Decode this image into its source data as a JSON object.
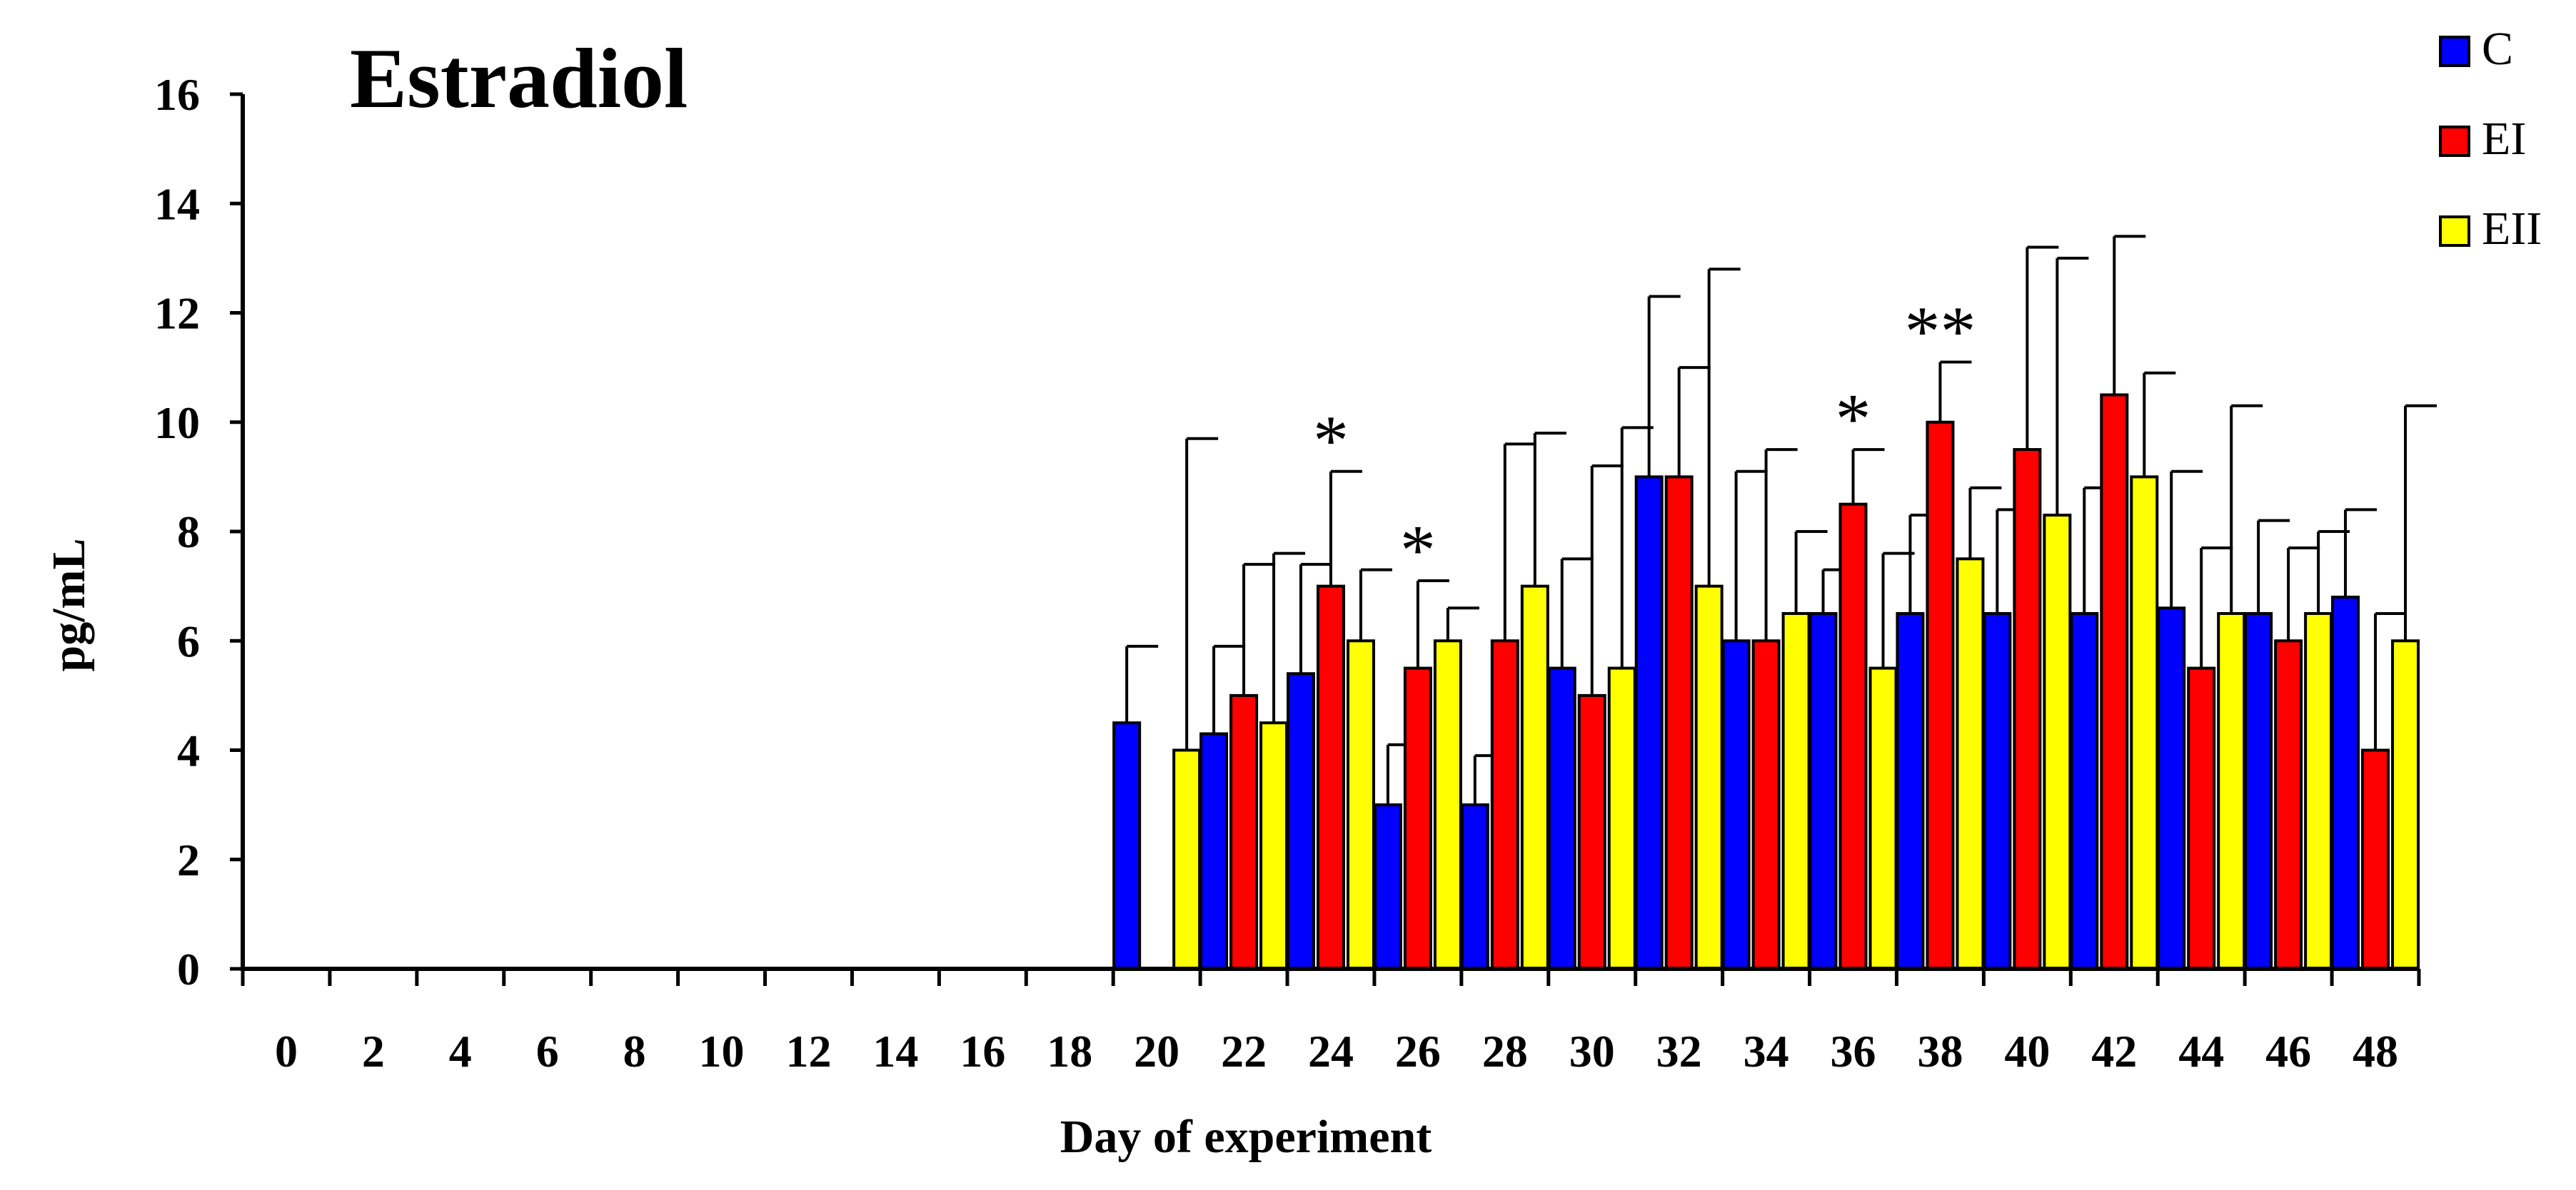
{
  "chart_data": {
    "type": "bar",
    "title": "Estradiol",
    "xlabel": "Day of experiment",
    "ylabel": "pg/mL",
    "ylim": [
      0,
      16
    ],
    "yticks": [
      "0",
      "2",
      "4",
      "6",
      "8",
      "10",
      "12",
      "14",
      "16"
    ],
    "categories": [
      "0",
      "2",
      "4",
      "6",
      "8",
      "10",
      "12",
      "14",
      "16",
      "18",
      "20",
      "22",
      "24",
      "26",
      "28",
      "30",
      "32",
      "34",
      "36",
      "38",
      "40",
      "42",
      "44",
      "46",
      "48"
    ],
    "series": [
      {
        "name": "C",
        "color": "#0000ff",
        "values": [
          null,
          null,
          null,
          null,
          null,
          null,
          null,
          null,
          null,
          null,
          4.5,
          4.3,
          5.4,
          3.0,
          3.0,
          5.5,
          9.0,
          6.0,
          6.5,
          6.5,
          6.5,
          6.5,
          6.6,
          6.5,
          6.8
        ],
        "errors": [
          null,
          null,
          null,
          null,
          null,
          null,
          null,
          null,
          null,
          null,
          1.4,
          1.6,
          2.0,
          1.1,
          0.9,
          2.0,
          3.3,
          3.1,
          0.8,
          1.8,
          1.9,
          2.3,
          2.5,
          1.7,
          1.6
        ]
      },
      {
        "name": "EI",
        "color": "#ff0000",
        "values": [
          null,
          null,
          null,
          null,
          null,
          null,
          null,
          null,
          null,
          null,
          null,
          5.0,
          7.0,
          5.5,
          6.0,
          5.0,
          9.0,
          6.0,
          8.5,
          10.0,
          9.5,
          10.5,
          5.5,
          6.0,
          4.0
        ],
        "errors": [
          null,
          null,
          null,
          null,
          null,
          null,
          null,
          null,
          null,
          null,
          null,
          2.4,
          2.1,
          1.6,
          3.6,
          4.2,
          2.0,
          3.5,
          1.0,
          1.1,
          3.7,
          2.9,
          2.2,
          1.7,
          2.5
        ]
      },
      {
        "name": "EII",
        "color": "#ffff00",
        "values": [
          null,
          null,
          null,
          null,
          null,
          null,
          null,
          null,
          null,
          null,
          4.0,
          4.5,
          6.0,
          6.0,
          7.0,
          5.5,
          7.0,
          6.5,
          5.5,
          7.5,
          8.3,
          9.0,
          6.5,
          6.5,
          6.0
        ],
        "errors": [
          null,
          null,
          null,
          null,
          null,
          null,
          null,
          null,
          null,
          null,
          5.7,
          3.1,
          1.3,
          0.6,
          2.8,
          4.4,
          5.8,
          1.5,
          2.1,
          1.3,
          4.7,
          1.9,
          3.8,
          1.5,
          4.3
        ]
      }
    ],
    "annotations": [
      {
        "category": "24",
        "text": "*"
      },
      {
        "category": "26",
        "text": "*"
      },
      {
        "category": "36",
        "text": "*"
      },
      {
        "category": "38",
        "text": "**"
      }
    ],
    "legend": [
      "C",
      "EI",
      "EII"
    ],
    "legend_position": "top-right",
    "grid": false
  }
}
